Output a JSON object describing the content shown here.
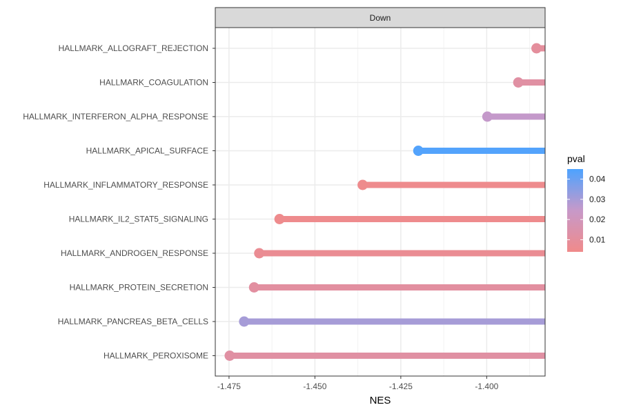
{
  "chart_data": {
    "type": "lollipop",
    "facet": "Down",
    "xlabel": "NES",
    "ylabel": "",
    "xlim": [
      -1.479,
      -1.383
    ],
    "x_ticks": [
      -1.475,
      -1.45,
      -1.425,
      -1.4
    ],
    "grid": true,
    "categories": [
      "HALLMARK_ALLOGRAFT_REJECTION",
      "HALLMARK_COAGULATION",
      "HALLMARK_INTERFERON_ALPHA_RESPONSE",
      "HALLMARK_APICAL_SURFACE",
      "HALLMARK_INFLAMMATORY_RESPONSE",
      "HALLMARK_IL2_STAT5_SIGNALING",
      "HALLMARK_ANDROGEN_RESPONSE",
      "HALLMARK_PROTEIN_SECRETION",
      "HALLMARK_PANCREAS_BETA_CELLS",
      "HALLMARK_PEROXISOME"
    ],
    "values": [
      -1.3855,
      -1.3908,
      -1.3998,
      -1.4199,
      -1.4361,
      -1.4603,
      -1.4662,
      -1.4677,
      -1.4706,
      -1.4748
    ],
    "pval": [
      0.01,
      0.012,
      0.025,
      0.044,
      0.005,
      0.005,
      0.007,
      0.011,
      0.03,
      0.012
    ],
    "legend": {
      "title": "pval",
      "position": "right",
      "ticks": [
        0.01,
        0.02,
        0.03,
        0.04
      ],
      "range": [
        0.004,
        0.045
      ],
      "color_low": "#F08A8A",
      "color_high": "#4DA3FF"
    }
  }
}
